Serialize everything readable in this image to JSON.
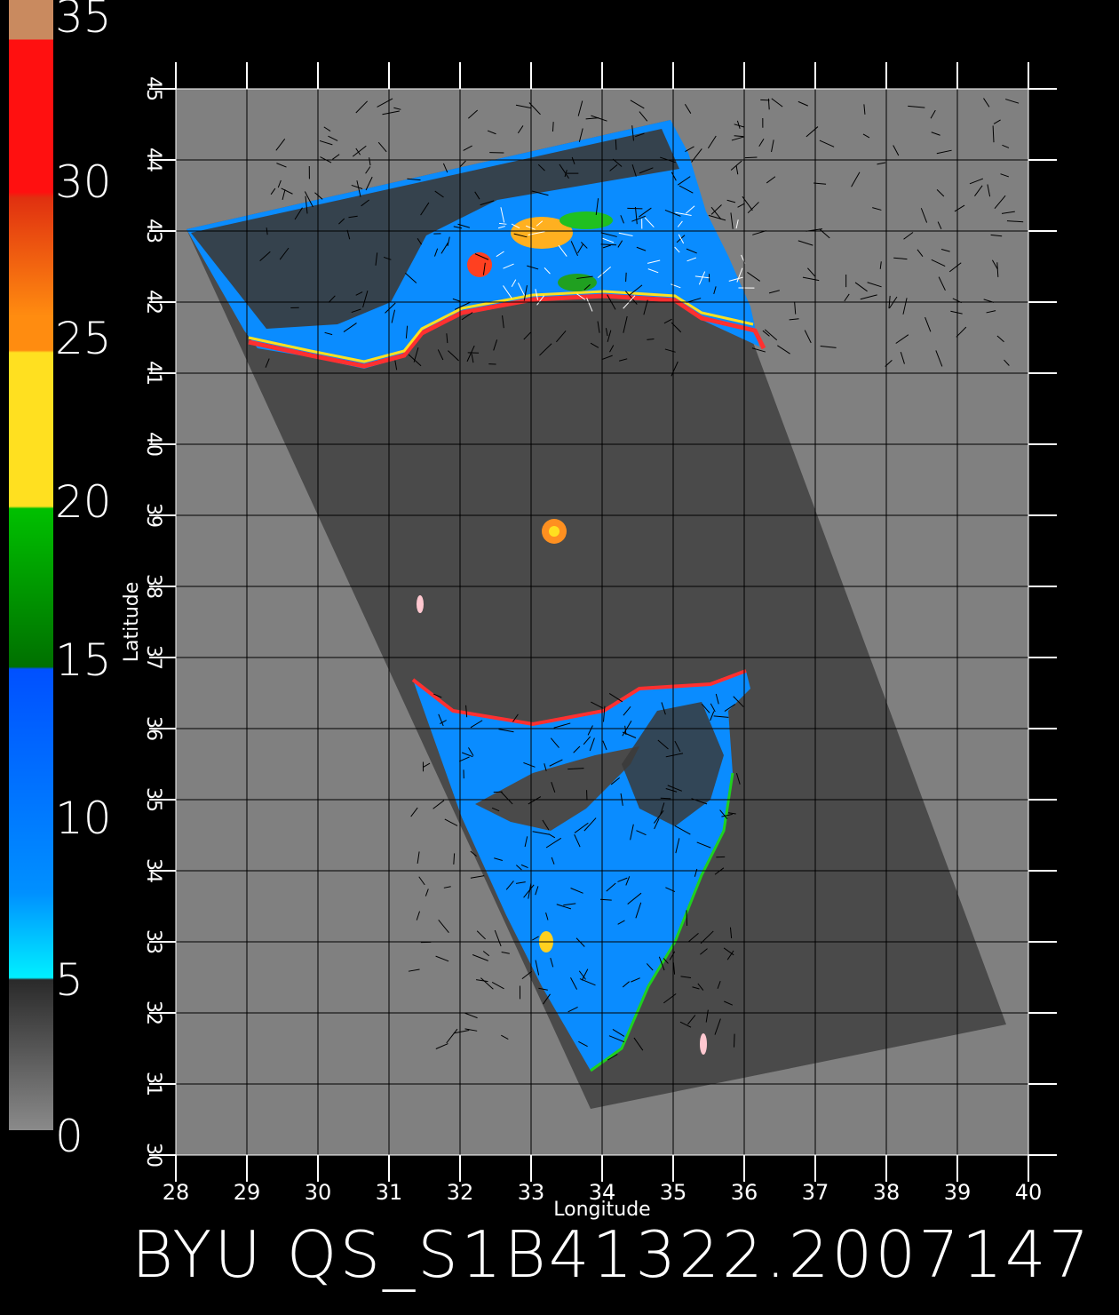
{
  "title": "BYU  QS_S1B41322.2007147",
  "colorbar": {
    "labels": [
      "35",
      "30",
      "25",
      "20",
      "15",
      "10",
      "5",
      "0"
    ],
    "colors": {
      "top": "#c98a5f",
      "red": "#ff1010",
      "orange": "#ff8c10",
      "yellow": "#ffe020",
      "green": "#00c000",
      "blue": "#0050ff",
      "cyan": "#00f0ff",
      "gray_dark": "#2a2a2a",
      "gray_light": "#8a8a8a"
    }
  },
  "map": {
    "xlabel": "Longitude",
    "ylabel": "Latitude",
    "lon_ticks": [
      "28",
      "29",
      "30",
      "31",
      "32",
      "33",
      "34",
      "35",
      "36",
      "37",
      "38",
      "39",
      "40"
    ],
    "lat_ticks": [
      "30",
      "31",
      "32",
      "33",
      "34",
      "35",
      "36",
      "37",
      "38",
      "39",
      "40",
      "41",
      "42",
      "43",
      "44",
      "45"
    ],
    "lon_range": [
      28,
      40
    ],
    "lat_range": [
      30,
      45
    ],
    "background_color": "#808080",
    "swath_color": "#4a4a4a"
  }
}
